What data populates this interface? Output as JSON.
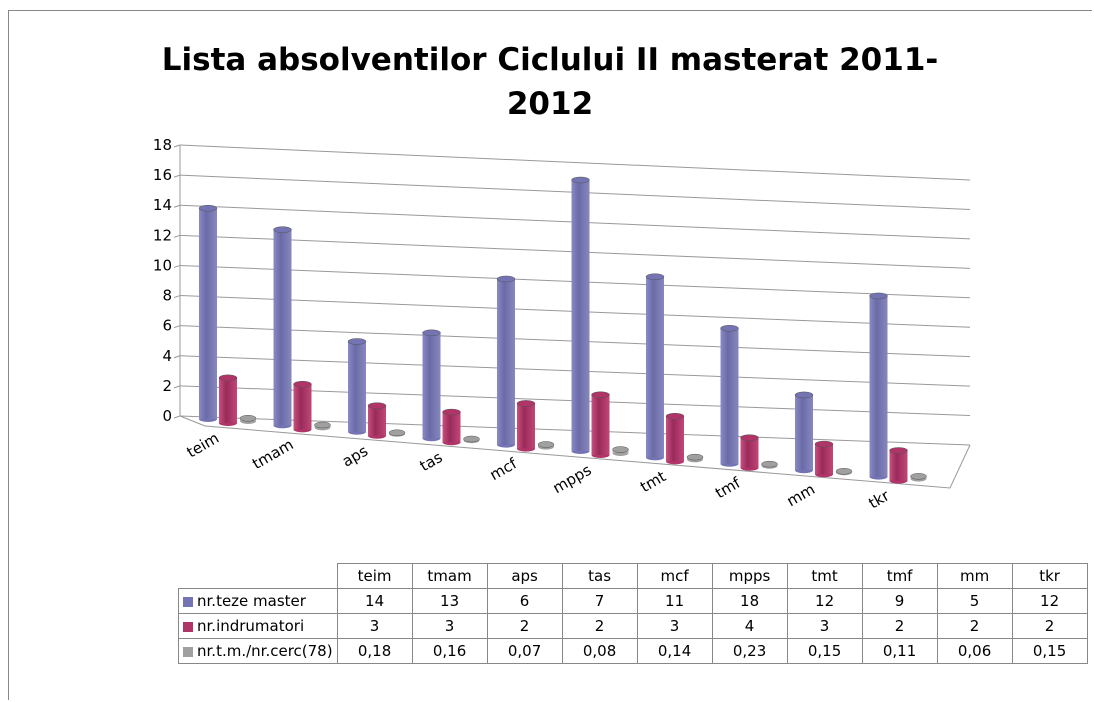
{
  "chart_data": {
    "type": "bar3d",
    "title": "Lista absolventilor Ciclului II masterat 2011-2012",
    "categories": [
      "teim",
      "tmam",
      "aps",
      "tas",
      "mcf",
      "mpps",
      "tmt",
      "tmf",
      "mm",
      "tkr"
    ],
    "series": [
      {
        "name": "nr.teze master",
        "color": "#7474b4",
        "values": [
          14,
          13,
          6,
          7,
          11,
          18,
          12,
          9,
          5,
          12
        ]
      },
      {
        "name": "nr.indrumatori",
        "color": "#b03468",
        "values": [
          3,
          3,
          2,
          2,
          3,
          4,
          3,
          2,
          2,
          2
        ]
      },
      {
        "name": "nr.t.m./nr.cerc(78)",
        "color": "#a0a0a0",
        "values": [
          0.18,
          0.16,
          0.07,
          0.08,
          0.14,
          0.23,
          0.15,
          0.11,
          0.06,
          0.15
        ],
        "value_labels": [
          "0,18",
          "0,16",
          "0,07",
          "0,08",
          "0,14",
          "0,23",
          "0,15",
          "0,11",
          "0,06",
          "0,15"
        ]
      }
    ],
    "ylim": [
      0,
      18
    ],
    "yticks": [
      0,
      2,
      4,
      6,
      8,
      10,
      12,
      14,
      16,
      18
    ],
    "grid": true,
    "data_table": true
  }
}
